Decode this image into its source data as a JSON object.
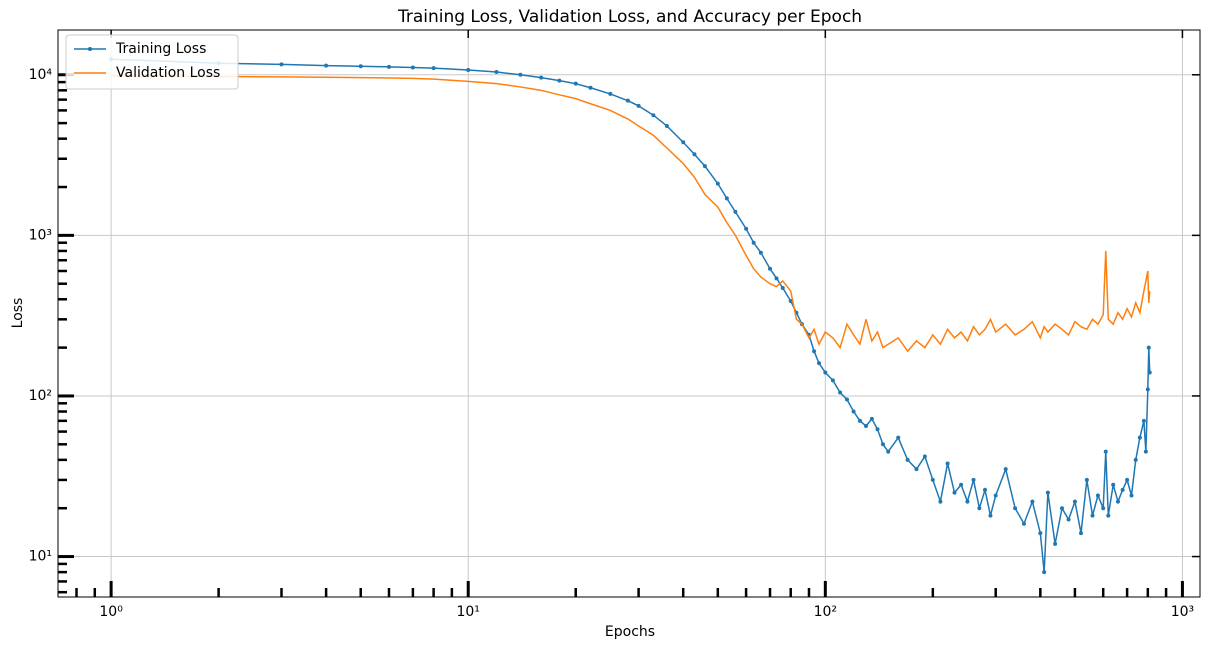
{
  "chart_data": {
    "type": "line",
    "title": "Training Loss, Validation Loss, and Accuracy per Epoch",
    "x_label": "Epochs",
    "y_label": "Loss",
    "x": [
      1,
      2,
      3,
      4,
      5,
      6,
      7,
      8,
      10,
      12,
      14,
      16,
      18,
      20,
      22,
      25,
      28,
      30,
      33,
      36,
      40,
      43,
      46,
      50,
      53,
      56,
      60,
      63,
      66,
      70,
      73,
      76,
      80,
      83,
      86,
      90,
      93,
      96,
      100,
      105,
      110,
      115,
      120,
      125,
      130,
      135,
      140,
      145,
      150,
      160,
      170,
      180,
      190,
      200,
      210,
      220,
      230,
      240,
      250,
      260,
      270,
      280,
      290,
      300,
      320,
      340,
      360,
      380,
      400,
      410,
      420,
      440,
      460,
      480,
      500,
      520,
      540,
      560,
      580,
      600,
      610,
      620,
      640,
      660,
      680,
      700,
      720,
      740,
      760,
      780,
      790,
      800,
      805,
      810
    ],
    "series": [
      {
        "name": "Training Loss",
        "color": "#1f77b4",
        "marker": true,
        "values": [
          12500,
          11800,
          11600,
          11400,
          11300,
          11200,
          11100,
          11000,
          10700,
          10400,
          10000,
          9600,
          9200,
          8800,
          8300,
          7600,
          6900,
          6400,
          5600,
          4800,
          3800,
          3200,
          2700,
          2100,
          1700,
          1400,
          1100,
          900,
          780,
          620,
          540,
          470,
          390,
          330,
          280,
          240,
          190,
          160,
          140,
          125,
          105,
          95,
          80,
          70,
          65,
          72,
          62,
          50,
          45,
          55,
          40,
          35,
          42,
          30,
          22,
          38,
          25,
          28,
          22,
          30,
          20,
          26,
          18,
          24,
          35,
          20,
          16,
          22,
          14,
          8,
          25,
          12,
          20,
          17,
          22,
          14,
          30,
          18,
          24,
          20,
          45,
          18,
          28,
          22,
          26,
          30,
          24,
          40,
          55,
          70,
          45,
          110,
          200,
          140
        ]
      },
      {
        "name": "Validation Loss",
        "color": "#ff7f0e",
        "marker": false,
        "values": [
          9800,
          9750,
          9700,
          9650,
          9600,
          9550,
          9500,
          9400,
          9100,
          8800,
          8400,
          8000,
          7500,
          7100,
          6600,
          6000,
          5300,
          4800,
          4200,
          3500,
          2800,
          2300,
          1800,
          1500,
          1200,
          1000,
          750,
          620,
          550,
          500,
          480,
          520,
          450,
          300,
          280,
          230,
          260,
          210,
          250,
          230,
          200,
          280,
          240,
          210,
          300,
          220,
          250,
          200,
          210,
          230,
          190,
          220,
          200,
          240,
          210,
          260,
          230,
          250,
          220,
          270,
          240,
          260,
          300,
          250,
          280,
          240,
          260,
          290,
          230,
          270,
          250,
          280,
          260,
          240,
          290,
          270,
          260,
          300,
          280,
          320,
          800,
          300,
          280,
          330,
          300,
          350,
          310,
          380,
          330,
          450,
          520,
          600,
          380,
          450
        ]
      }
    ],
    "log_x": true,
    "log_y": true,
    "xlim": [
      0.71,
      1120
    ],
    "ylim": [
      5.6,
      19000
    ],
    "xticks": [
      {
        "value": 1,
        "label": "10⁰"
      },
      {
        "value": 10,
        "label": "10¹"
      },
      {
        "value": 100,
        "label": "10²"
      },
      {
        "value": 1000,
        "label": "10³"
      }
    ],
    "yticks": [
      {
        "value": 10,
        "label": "10¹"
      },
      {
        "value": 100,
        "label": "10²"
      },
      {
        "value": 1000,
        "label": "10³"
      },
      {
        "value": 10000,
        "label": "10⁴"
      }
    ],
    "xminorticks": [
      0.8,
      0.9,
      2,
      3,
      4,
      5,
      6,
      7,
      8,
      9,
      20,
      30,
      40,
      50,
      60,
      70,
      80,
      90,
      200,
      300,
      400,
      500,
      600,
      700,
      800,
      900
    ],
    "yminorticks": [
      6,
      7,
      8,
      9,
      20,
      30,
      40,
      50,
      60,
      70,
      80,
      90,
      200,
      300,
      400,
      500,
      600,
      700,
      800,
      900,
      2000,
      3000,
      4000,
      5000,
      6000,
      7000,
      8000,
      9000
    ],
    "grid": true,
    "legend": "upper left"
  }
}
